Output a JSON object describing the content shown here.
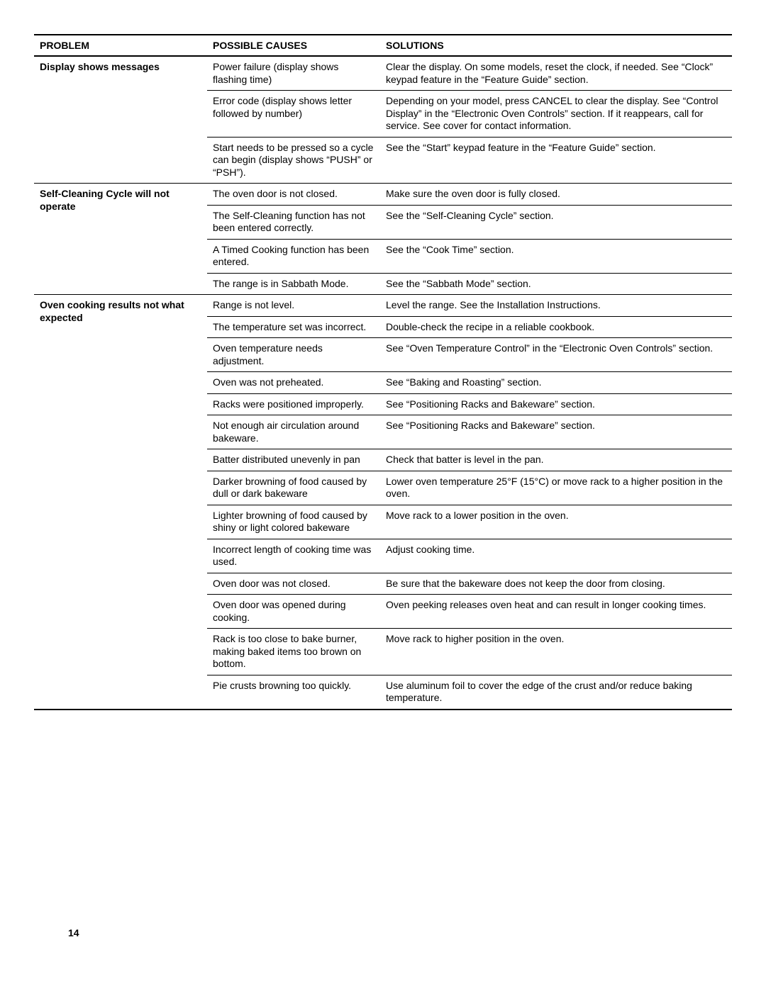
{
  "page_number": "14",
  "headers": {
    "problem": "PROBLEM",
    "causes": "POSSIBLE CAUSES",
    "solutions": "SOLUTIONS"
  },
  "sections": [
    {
      "problem": "Display shows messages",
      "rowspan": 3,
      "rows": [
        {
          "cause": "Power failure (display shows flashing time)",
          "solution": "Clear the display. On some models, reset the clock, if needed. See “Clock” keypad feature in the “Feature Guide” section."
        },
        {
          "cause": "Error code (display shows letter followed by number)",
          "solution": "Depending on your model, press CANCEL to clear the display. See “Control Display” in the “Electronic Oven Controls” section. If it reappears, call for service. See cover for contact information."
        },
        {
          "cause": "Start needs to be pressed so a cycle can begin (display shows “PUSH” or “PSH”).",
          "solution": "See the “Start” keypad feature in the “Feature Guide” section."
        }
      ]
    },
    {
      "problem": "Self-Cleaning Cycle will not operate",
      "rowspan": 4,
      "rows": [
        {
          "cause": "The oven door is not closed.",
          "solution": "Make sure the oven door is fully closed."
        },
        {
          "cause": "The Self-Cleaning function has not been entered correctly.",
          "solution": "See the “Self-Cleaning Cycle” section."
        },
        {
          "cause": "A Timed Cooking function has been entered.",
          "solution": "See the “Cook Time” section."
        },
        {
          "cause": "The range is in Sabbath Mode.",
          "solution": "See the “Sabbath Mode” section."
        }
      ]
    },
    {
      "problem": "Oven cooking results not what expected",
      "rowspan": 14,
      "rows": [
        {
          "cause": "Range is not level.",
          "solution": "Level the range. See the Installation Instructions."
        },
        {
          "cause": "The temperature set was incorrect.",
          "solution": "Double-check the recipe in a reliable cookbook."
        },
        {
          "cause": "Oven temperature needs adjustment.",
          "solution": "See “Oven Temperature Control” in the “Electronic Oven Controls” section."
        },
        {
          "cause": "Oven was not preheated.",
          "solution": "See “Baking and Roasting” section."
        },
        {
          "cause": "Racks were positioned improperly.",
          "solution": "See “Positioning Racks and Bakeware” section."
        },
        {
          "cause": "Not enough air circulation around bakeware.",
          "solution": "See “Positioning Racks and Bakeware” section."
        },
        {
          "cause": "Batter distributed unevenly in pan",
          "solution": "Check that batter is level in the pan."
        },
        {
          "cause": "Darker browning of food caused by dull or dark bakeware",
          "solution": "Lower oven temperature 25°F (15°C) or move rack to a higher position in the oven."
        },
        {
          "cause": "Lighter browning of food caused by shiny or light colored bakeware",
          "solution": "Move rack to a lower position in the oven."
        },
        {
          "cause": "Incorrect length of cooking time was used.",
          "solution": "Adjust cooking time."
        },
        {
          "cause": "Oven door was not closed.",
          "solution": "Be sure that the bakeware does not keep the door from closing."
        },
        {
          "cause": "Oven door was opened during cooking.",
          "solution": "Oven peeking releases oven heat and can result in longer cooking times."
        },
        {
          "cause": "Rack is too close to bake burner, making baked items too brown on bottom.",
          "solution": "Move rack to higher position in the oven."
        },
        {
          "cause": "Pie crusts browning too quickly.",
          "solution": "Use aluminum foil to cover the edge of the crust and/or reduce baking temperature."
        }
      ]
    }
  ]
}
